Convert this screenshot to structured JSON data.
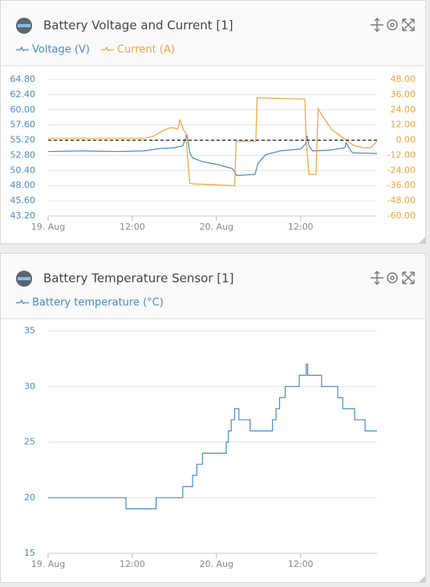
{
  "chart_data": [
    {
      "type": "line",
      "title": "Battery Voltage and Current [1]",
      "grid": true,
      "xlim": [
        0,
        46.9
      ],
      "xticks": [
        {
          "value": 0,
          "label": "19. Aug"
        },
        {
          "value": 12,
          "label": "12:00"
        },
        {
          "value": 24,
          "label": "20. Aug"
        },
        {
          "value": 36,
          "label": "12:00"
        }
      ],
      "ylim": [
        43.2,
        64.8
      ],
      "yticks": [
        {
          "value": 64.8,
          "label": "64.80"
        },
        {
          "value": 62.4,
          "label": "62.40"
        },
        {
          "value": 60,
          "label": "60.00"
        },
        {
          "value": 57.6,
          "label": "57.60"
        },
        {
          "value": 55.2,
          "label": "55.20"
        },
        {
          "value": 52.8,
          "label": "52.80"
        },
        {
          "value": 50.4,
          "label": "50.40"
        },
        {
          "value": 48,
          "label": "48.00"
        },
        {
          "value": 45.6,
          "label": "45.60"
        },
        {
          "value": 43.2,
          "label": "43.20"
        }
      ],
      "y2lim": [
        -60,
        48
      ],
      "y2ticks": [
        {
          "value": 48,
          "label": "48.00"
        },
        {
          "value": 36,
          "label": "36.00"
        },
        {
          "value": 24,
          "label": "24.00"
        },
        {
          "value": 12,
          "label": "12.00"
        },
        {
          "value": 0,
          "label": "0.00"
        },
        {
          "value": -12,
          "label": "-12.00"
        },
        {
          "value": -24,
          "label": "-24.00"
        },
        {
          "value": -36,
          "label": "-36.00"
        },
        {
          "value": -48,
          "label": "-48.00"
        },
        {
          "value": -60,
          "label": "-60.00"
        }
      ],
      "reference_line": {
        "axis": "y2",
        "value": 0,
        "style": "dashed"
      },
      "series": [
        {
          "name": "Voltage (V)",
          "color": "#4a8ac4",
          "x": [
            0,
            5,
            10,
            13.7,
            16,
            18,
            19.2,
            19.6,
            19.8,
            20.2,
            20.6,
            22,
            24,
            26.3,
            26.9,
            29.5,
            29.9,
            31,
            33.1,
            36,
            36.7,
            36.9,
            37.2,
            37.7,
            40,
            42.3,
            42.5,
            43,
            43.4,
            46.9
          ],
          "values": [
            53.4,
            53.5,
            53.4,
            53.5,
            53.9,
            54.0,
            54.3,
            55.5,
            56.0,
            53.2,
            52.4,
            51.8,
            51.4,
            50.7,
            49.6,
            49.8,
            51.5,
            52.9,
            53.5,
            53.8,
            54.6,
            55.9,
            54.3,
            53.5,
            53.6,
            54.0,
            54.8,
            53.8,
            53.2,
            53.1
          ]
        },
        {
          "name": "Current (A)",
          "color": "#f0a33a",
          "axis": "y2",
          "x": [
            0,
            13.7,
            15,
            16.5,
            17.5,
            18.5,
            18.8,
            19.3,
            19.6,
            20.2,
            20.6,
            26.6,
            26.8,
            29.6,
            29.8,
            36.6,
            36.8,
            37.2,
            38.2,
            38.5,
            39,
            40.5,
            42,
            43.5,
            45,
            46,
            46.9
          ],
          "values": [
            1.5,
            1.5,
            3,
            8,
            10,
            9,
            16,
            8,
            6,
            -34,
            -34.5,
            -36,
            -1,
            -1,
            33.5,
            32.5,
            -1,
            -27,
            -27,
            25,
            20,
            8,
            2,
            -4,
            -6,
            -6,
            -1
          ]
        }
      ]
    },
    {
      "type": "line",
      "title": "Battery Temperature Sensor [1]",
      "grid": true,
      "xlim": [
        0,
        46.9
      ],
      "xticks": [
        {
          "value": 0,
          "label": "19. Aug"
        },
        {
          "value": 12,
          "label": "12:00"
        },
        {
          "value": 24,
          "label": "20. Aug"
        },
        {
          "value": 36,
          "label": "12:00"
        }
      ],
      "ylim": [
        15,
        35
      ],
      "yticks": [
        35,
        30,
        25,
        20,
        15
      ],
      "series": [
        {
          "name": "Battery temperature (°C)",
          "color": "#4a8ac4",
          "x": [
            0,
            11.1,
            11.1,
            15.4,
            15.4,
            19.2,
            19.2,
            20.6,
            20.6,
            21.2,
            21.2,
            22,
            22,
            25.4,
            25.4,
            25.7,
            25.7,
            26.1,
            26.1,
            26.6,
            26.6,
            27.2,
            27.2,
            28.8,
            28.8,
            32,
            32,
            32.5,
            32.5,
            33,
            33,
            33.8,
            33.8,
            35.8,
            35.8,
            36.8,
            36.8,
            37,
            37,
            39,
            39,
            41.3,
            41.3,
            42,
            42,
            43.7,
            43.7,
            45.2,
            45.2,
            46.9
          ],
          "values": [
            20,
            20,
            19,
            19,
            20,
            20,
            21,
            21,
            22,
            22,
            23,
            23,
            24,
            24,
            25,
            25,
            26,
            26,
            27,
            27,
            28,
            28,
            27,
            27,
            26,
            26,
            27,
            27,
            28,
            28,
            29,
            29,
            30,
            30,
            31,
            31,
            32,
            32,
            31,
            31,
            30,
            30,
            29,
            29,
            28,
            28,
            27,
            27,
            26,
            26
          ]
        }
      ]
    }
  ]
}
